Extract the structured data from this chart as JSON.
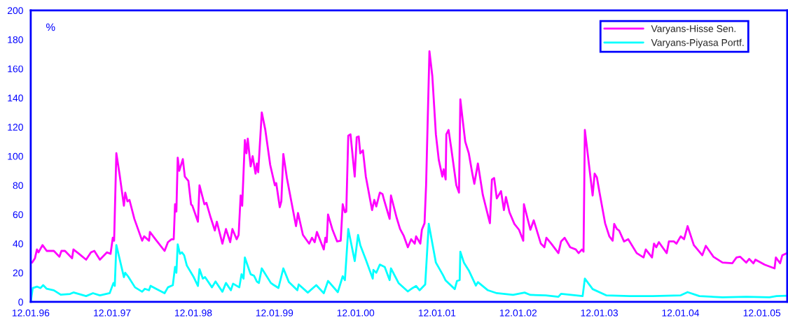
{
  "chart_data": {
    "type": "line",
    "ylabel": "%",
    "xlim": [
      "1996-01-12",
      "2005-05-06"
    ],
    "ylim": [
      0,
      200
    ],
    "yticks": [
      0,
      20,
      40,
      60,
      80,
      100,
      120,
      140,
      160,
      180,
      200
    ],
    "xticks": [
      {
        "value": "1996-01-12",
        "label": "12.01.96"
      },
      {
        "value": "1997-01-12",
        "label": "12.01.97"
      },
      {
        "value": "1998-01-12",
        "label": "12.01.98"
      },
      {
        "value": "1999-01-12",
        "label": "12.01.99"
      },
      {
        "value": "2000-01-12",
        "label": "12.01.00"
      },
      {
        "value": "2001-01-12",
        "label": "12.01.01"
      },
      {
        "value": "2002-01-12",
        "label": "12.01.02"
      },
      {
        "value": "2003-01-12",
        "label": "12.01.03"
      },
      {
        "value": "2004-01-12",
        "label": "12.01.04"
      },
      {
        "value": "2005-01-12",
        "label": "12.01.05"
      }
    ],
    "grid": false,
    "legend": "top right",
    "marker": "none",
    "line_style": "solid",
    "series": [
      {
        "name": "Varyans-Hisse Sen.",
        "color": "#ff00ff",
        "x": [
          "1996-01-18",
          "1996-01-31",
          "1996-02-09",
          "1996-02-16",
          "1996-03-05",
          "1996-03-24",
          "1996-04-25",
          "1996-05-20",
          "1996-05-29",
          "1996-06-14",
          "1996-07-16",
          "1996-07-22",
          "1996-08-16",
          "1996-09-17",
          "1996-10-09",
          "1996-10-24",
          "1996-11-18",
          "1996-12-20",
          "1997-01-05",
          "1997-01-15",
          "1997-01-21",
          "1997-01-31",
          "1997-02-15",
          "1997-03-06",
          "1997-03-12",
          "1997-03-22",
          "1997-03-31",
          "1997-04-22",
          "1997-05-27",
          "1997-06-05",
          "1997-06-27",
          "1997-07-01",
          "1997-07-26",
          "1997-09-05",
          "1997-09-20",
          "1997-10-06",
          "1997-10-16",
          "1997-10-22",
          "1997-10-28",
          "1997-11-03",
          "1997-11-10",
          "1997-11-26",
          "1997-12-05",
          "1997-12-21",
          "1998-01-02",
          "1998-01-08",
          "1998-02-02",
          "1998-02-09",
          "1998-03-03",
          "1998-03-12",
          "1998-03-31",
          "1998-04-19",
          "1998-04-28",
          "1998-05-23",
          "1998-06-08",
          "1998-06-27",
          "1998-07-07",
          "1998-07-26",
          "1998-08-04",
          "1998-08-13",
          "1998-08-20",
          "1998-09-01",
          "1998-09-08",
          "1998-09-14",
          "1998-09-27",
          "1998-10-06",
          "1998-10-19",
          "1998-10-25",
          "1998-10-31",
          "1998-11-16",
          "1998-12-02",
          "1998-12-24",
          "1999-01-14",
          "1999-01-20",
          "1999-02-05",
          "1999-02-12",
          "1999-02-21",
          "1999-03-09",
          "1999-04-19",
          "1999-04-28",
          "1999-05-20",
          "1999-06-17",
          "1999-06-30",
          "1999-07-12",
          "1999-07-22",
          "1999-08-22",
          "1999-08-29",
          "1999-09-04",
          "1999-09-10",
          "1999-09-29",
          "1999-10-21",
          "1999-11-06",
          "1999-11-15",
          "1999-11-25",
          "1999-12-01",
          "1999-12-10",
          "1999-12-20",
          "2000-01-08",
          "2000-01-17",
          "2000-01-26",
          "2000-02-02",
          "2000-02-14",
          "2000-02-27",
          "2000-03-26",
          "2000-04-05",
          "2000-04-14",
          "2000-04-30",
          "2000-05-12",
          "2000-05-19",
          "2000-06-13",
          "2000-06-19",
          "2000-07-14",
          "2000-07-30",
          "2000-08-15",
          "2000-09-03",
          "2000-09-18",
          "2000-10-04",
          "2000-10-10",
          "2000-10-29",
          "2000-11-05",
          "2000-11-17",
          "2000-11-24",
          "2000-12-09",
          "2000-12-22",
          "2001-01-07",
          "2001-01-20",
          "2001-02-05",
          "2001-02-11",
          "2001-02-20",
          "2001-02-23",
          "2001-03-05",
          "2001-03-17",
          "2001-04-09",
          "2001-04-21",
          "2001-04-27",
          "2001-05-07",
          "2001-05-19",
          "2001-06-04",
          "2001-06-20",
          "2001-06-29",
          "2001-07-15",
          "2001-08-06",
          "2001-09-07",
          "2001-09-16",
          "2001-09-26",
          "2001-10-08",
          "2001-10-27",
          "2001-11-09",
          "2001-11-18",
          "2001-12-04",
          "2001-12-26",
          "2002-01-16",
          "2002-02-04",
          "2002-02-07",
          "2002-03-08",
          "2002-03-23",
          "2002-04-24",
          "2002-05-10",
          "2002-05-19",
          "2002-06-10",
          "2002-07-12",
          "2002-07-24",
          "2002-08-09",
          "2002-09-03",
          "2002-09-28",
          "2002-10-11",
          "2002-10-26",
          "2002-11-02",
          "2002-11-08",
          "2002-12-13",
          "2002-12-22",
          "2003-01-01",
          "2003-01-13",
          "2003-02-07",
          "2003-02-26",
          "2003-03-13",
          "2003-03-20",
          "2003-04-01",
          "2003-04-11",
          "2003-05-03",
          "2003-05-22",
          "2003-06-29",
          "2003-07-30",
          "2003-08-09",
          "2003-09-06",
          "2003-09-15",
          "2003-09-25",
          "2003-10-07",
          "2003-10-23",
          "2003-11-11",
          "2003-11-21",
          "2003-12-13",
          "2003-12-25",
          "2004-01-13",
          "2004-01-28",
          "2004-02-13",
          "2004-03-12",
          "2004-04-06",
          "2004-04-19",
          "2004-05-05",
          "2004-06-08",
          "2004-07-19",
          "2004-09-01",
          "2004-09-20",
          "2004-10-06",
          "2004-11-03",
          "2004-11-16",
          "2004-12-05",
          "2004-12-14",
          "2005-01-25",
          "2005-03-10",
          "2005-03-16",
          "2005-04-04",
          "2005-04-14",
          "2005-05-06"
        ],
        "values": [
          27,
          30,
          36,
          34,
          39,
          35,
          35,
          31,
          35,
          35,
          30,
          36,
          33,
          29,
          34,
          35,
          29,
          34,
          33,
          44,
          42,
          102,
          87,
          66,
          75,
          69,
          70,
          57,
          42,
          45,
          42,
          48,
          43,
          35,
          41,
          43,
          43,
          67,
          62,
          99,
          90,
          98,
          86,
          83,
          67,
          66,
          55,
          80,
          67,
          68,
          58,
          49,
          55,
          40,
          50,
          41,
          50,
          43,
          46,
          73,
          66,
          111,
          102,
          112,
          93,
          100,
          88,
          95,
          89,
          130,
          118,
          94,
          80,
          81.5,
          65,
          69,
          101.5,
          85,
          52,
          61,
          46,
          40,
          44,
          41,
          48,
          36,
          44,
          41,
          60,
          50,
          41.5,
          42,
          67,
          61.5,
          62,
          114,
          115,
          86,
          113,
          113.5,
          102,
          104,
          86,
          63,
          70,
          65.5,
          75,
          74,
          70,
          57,
          73,
          58,
          50,
          45.5,
          37.5,
          43,
          40,
          45,
          40,
          49.5,
          54,
          80,
          172,
          155,
          115,
          97.5,
          86,
          91,
          84,
          115,
          118,
          105.5,
          80,
          75,
          139,
          125.5,
          110,
          102,
          88,
          81,
          95,
          73.5,
          54,
          84,
          85,
          71,
          76,
          63,
          72,
          61.5,
          53.5,
          49.5,
          42,
          67,
          49.5,
          56,
          40,
          37.5,
          44,
          40,
          33.5,
          41.5,
          44,
          37.5,
          36,
          33.5,
          36,
          34.5,
          118,
          73,
          88,
          85.5,
          75,
          54,
          45,
          42,
          53.5,
          50,
          49,
          41.5,
          43,
          33.5,
          30.5,
          36,
          30.5,
          40,
          37.5,
          41,
          37.5,
          33.5,
          41.5,
          41.5,
          40,
          45,
          43,
          52,
          39,
          34.5,
          32,
          38.5,
          31,
          27,
          26.5,
          30.5,
          31,
          27,
          29.5,
          26.5,
          29,
          25.5,
          23,
          30.5,
          26.5,
          32,
          33.5
        ]
      },
      {
        "name": "Varyans-Piyasa Portf.",
        "color": "#00ffff",
        "x": [
          "1996-01-12",
          "1996-01-21",
          "1996-02-09",
          "1996-02-25",
          "1996-03-08",
          "1996-03-24",
          "1996-04-25",
          "1996-05-26",
          "1996-07-07",
          "1996-07-22",
          "1996-09-17",
          "1996-10-18",
          "1996-11-18",
          "1997-01-01",
          "1997-01-18",
          "1997-01-24",
          "1997-01-31",
          "1997-03-06",
          "1997-03-12",
          "1997-03-25",
          "1997-04-25",
          "1997-05-27",
          "1997-06-08",
          "1997-06-27",
          "1997-07-04",
          "1997-07-29",
          "1997-09-05",
          "1997-09-20",
          "1997-10-12",
          "1997-10-22",
          "1997-10-28",
          "1997-11-03",
          "1997-11-13",
          "1997-11-22",
          "1997-12-02",
          "1997-12-14",
          "1998-01-14",
          "1998-02-02",
          "1998-02-09",
          "1998-02-24",
          "1998-03-06",
          "1998-04-06",
          "1998-04-22",
          "1998-05-23",
          "1998-06-08",
          "1998-06-30",
          "1998-07-10",
          "1998-08-07",
          "1998-08-17",
          "1998-08-26",
          "1998-09-01",
          "1998-09-11",
          "1998-09-27",
          "1998-10-12",
          "1998-10-25",
          "1998-11-03",
          "1998-11-16",
          "1998-12-27",
          "1999-01-05",
          "1999-01-30",
          "1999-02-21",
          "1999-03-18",
          "1999-04-25",
          "1999-05-01",
          "1999-06-11",
          "1999-07-19",
          "1999-08-22",
          "1999-09-10",
          "1999-10-24",
          "1999-11-15",
          "1999-11-25",
          "1999-12-10",
          "2000-01-08",
          "2000-01-23",
          "2000-02-02",
          "2000-02-27",
          "2000-03-29",
          "2000-04-01",
          "2000-04-14",
          "2000-04-30",
          "2000-05-22",
          "2000-06-13",
          "2000-06-19",
          "2000-07-24",
          "2000-09-03",
          "2000-09-25",
          "2000-10-10",
          "2000-10-26",
          "2000-11-20",
          "2000-12-06",
          "2001-01-07",
          "2001-02-08",
          "2001-02-20",
          "2001-04-02",
          "2001-04-12",
          "2001-04-24",
          "2001-04-27",
          "2001-05-13",
          "2001-06-04",
          "2001-07-06",
          "2001-07-15",
          "2001-08-29",
          "2001-10-08",
          "2001-12-20",
          "2002-02-10",
          "2002-03-08",
          "2002-05-16",
          "2002-07-12",
          "2002-07-24",
          "2002-10-29",
          "2002-11-08",
          "2002-12-13",
          "2003-02-12",
          "2003-05-28",
          "2003-09-09",
          "2004-01-13",
          "2004-02-13",
          "2004-04-06",
          "2004-07-19",
          "2004-11-03",
          "2005-02-15",
          "2005-03-19",
          "2005-05-06"
        ],
        "values": [
          0,
          9.5,
          10.5,
          9.5,
          11.5,
          9,
          8,
          5,
          5.5,
          6.5,
          4,
          6,
          4.5,
          6,
          13,
          11,
          39,
          17,
          20,
          17.5,
          10,
          7,
          9,
          8,
          11,
          9,
          6,
          10,
          11.5,
          24,
          20,
          39.5,
          33,
          34,
          32,
          25,
          17,
          11,
          22.5,
          16,
          17,
          10,
          14,
          7,
          13,
          8,
          12.5,
          10,
          19,
          16,
          30.5,
          26,
          19,
          18,
          14,
          13,
          23,
          13,
          12,
          9.6,
          23,
          13.6,
          8,
          12,
          6.4,
          11.5,
          6,
          14.4,
          6.7,
          17.6,
          15,
          50,
          28,
          46,
          39,
          29,
          16,
          22,
          20,
          25.6,
          24,
          15,
          23,
          12.8,
          7.2,
          9.6,
          10.9,
          8,
          12,
          53.6,
          27,
          18.4,
          14.7,
          8.8,
          14.4,
          15,
          34.4,
          27,
          21.6,
          11.2,
          13.6,
          8,
          6,
          4.8,
          6.4,
          4.8,
          4.5,
          3.5,
          5.6,
          4,
          16,
          8.8,
          4.5,
          4,
          4,
          4.5,
          6.7,
          4,
          3.2,
          3.5,
          3.2,
          4,
          4.3
        ]
      }
    ]
  }
}
